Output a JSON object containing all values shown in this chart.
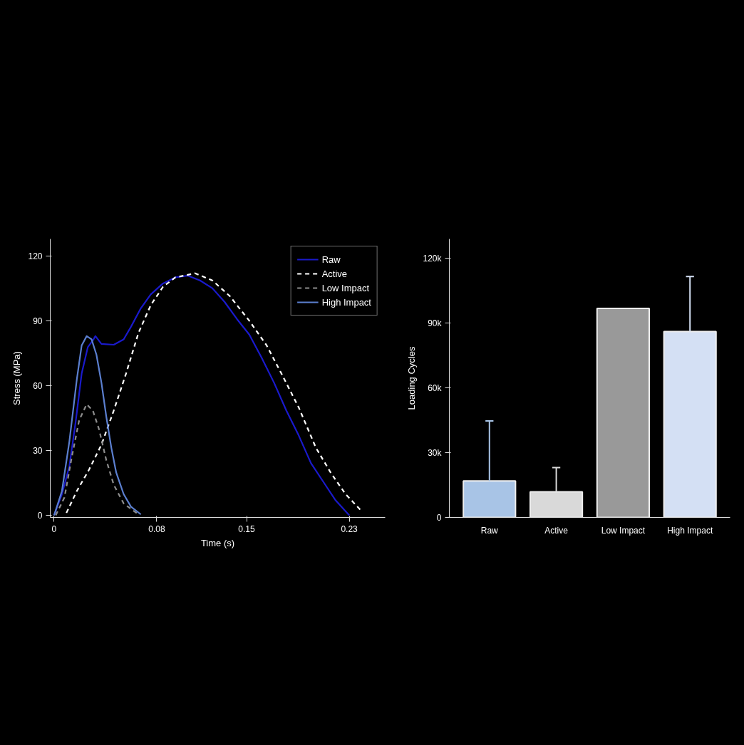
{
  "chart_data": [
    {
      "type": "line",
      "xlabel": "Time (s)",
      "ylabel": "Stress (MPa)",
      "xlim": [
        -0.003,
        0.258
      ],
      "xticks": [
        0,
        0.08,
        0.15,
        0.23
      ],
      "ylim": [
        -1,
        128
      ],
      "yticks": [
        0,
        30,
        60,
        90,
        120
      ],
      "grid": false,
      "legend": "top right",
      "marker": "none",
      "series": [
        {
          "name": "Raw",
          "color": "#1a1acc",
          "line_style": "solid",
          "x": [
            0,
            0.0061,
            0.0119,
            0.0167,
            0.0215,
            0.0263,
            0.0302,
            0.0322,
            0.0369,
            0.0465,
            0.0542,
            0.0599,
            0.0676,
            0.0753,
            0.0849,
            0.0945,
            0.1041,
            0.1137,
            0.1233,
            0.1329,
            0.1425,
            0.1521,
            0.1618,
            0.1714,
            0.181,
            0.1906,
            0.2002,
            0.2098,
            0.2194,
            0.23
          ],
          "values": [
            0,
            9.8,
            22.7,
            42.8,
            65.7,
            77.9,
            81,
            83,
            79.4,
            79,
            81.5,
            87.3,
            95.9,
            102.3,
            107.4,
            110.2,
            111,
            108.8,
            105.2,
            98.8,
            90.9,
            83.7,
            72.9,
            61.4,
            48.5,
            37,
            24.1,
            15.5,
            6.9,
            0
          ]
        },
        {
          "name": "Active",
          "color": "#ffffff",
          "line_style": "dashed",
          "x": [
            0.0096,
            0.0177,
            0.0273,
            0.0369,
            0.0465,
            0.0561,
            0.0657,
            0.0753,
            0.0849,
            0.0945,
            0.1099,
            0.1233,
            0.1368,
            0.1521,
            0.1656,
            0.1771,
            0.1906,
            0.204,
            0.2155,
            0.2271,
            0.2386
          ],
          "values": [
            1.1,
            11.2,
            21.2,
            32.7,
            48.5,
            65.7,
            84.4,
            97.3,
            105.9,
            110.2,
            112.1,
            108.8,
            101.6,
            90.1,
            78.7,
            65.7,
            50,
            31.3,
            19.8,
            9.8,
            2.6
          ]
        },
        {
          "name": "Low Impact",
          "color": "#8c8c8c",
          "line_style": "dashed",
          "x": [
            0.0013,
            0.0081,
            0.0138,
            0.0196,
            0.0254,
            0.0302,
            0.035,
            0.0407,
            0.0465,
            0.0542,
            0.0657
          ],
          "values": [
            0,
            8.3,
            27,
            44.2,
            51.4,
            48.5,
            39.9,
            25.5,
            14.1,
            5.5,
            0.4
          ]
        },
        {
          "name": "High Impact",
          "color": "#5b7fcf",
          "line_style": "solid",
          "x": [
            0,
            0.0061,
            0.0119,
            0.0177,
            0.0215,
            0.0254,
            0.0292,
            0.033,
            0.0369,
            0.0407,
            0.0446,
            0.0484,
            0.0542,
            0.0599,
            0.0676
          ],
          "values": [
            0,
            11.2,
            34.2,
            62.9,
            78.7,
            83,
            81.5,
            74.4,
            61.4,
            45.6,
            31.3,
            19.8,
            9.8,
            4,
            0.4
          ]
        }
      ]
    },
    {
      "type": "bar",
      "ylabel": "Loading Cycles",
      "categories": [
        "Raw",
        "Active",
        "Low Impact",
        "High Impact"
      ],
      "values": [
        16900,
        11900,
        96800,
        86100
      ],
      "colors": [
        "#a8c4e6",
        "#d9d9d9",
        "#999999",
        "#d4e0f4"
      ],
      "errors": [
        [
          16900,
          44700
        ],
        [
          11900,
          23100
        ],
        null,
        [
          86100,
          111600
        ]
      ],
      "ylim": [
        0,
        129000
      ],
      "yticks": [
        {
          "value": 0,
          "label": "0"
        },
        {
          "value": 30000,
          "label": "30k"
        },
        {
          "value": 60000,
          "label": "60k"
        },
        {
          "value": 90000,
          "label": "90k"
        },
        {
          "value": 120000,
          "label": "120k"
        }
      ],
      "grid": false
    }
  ]
}
